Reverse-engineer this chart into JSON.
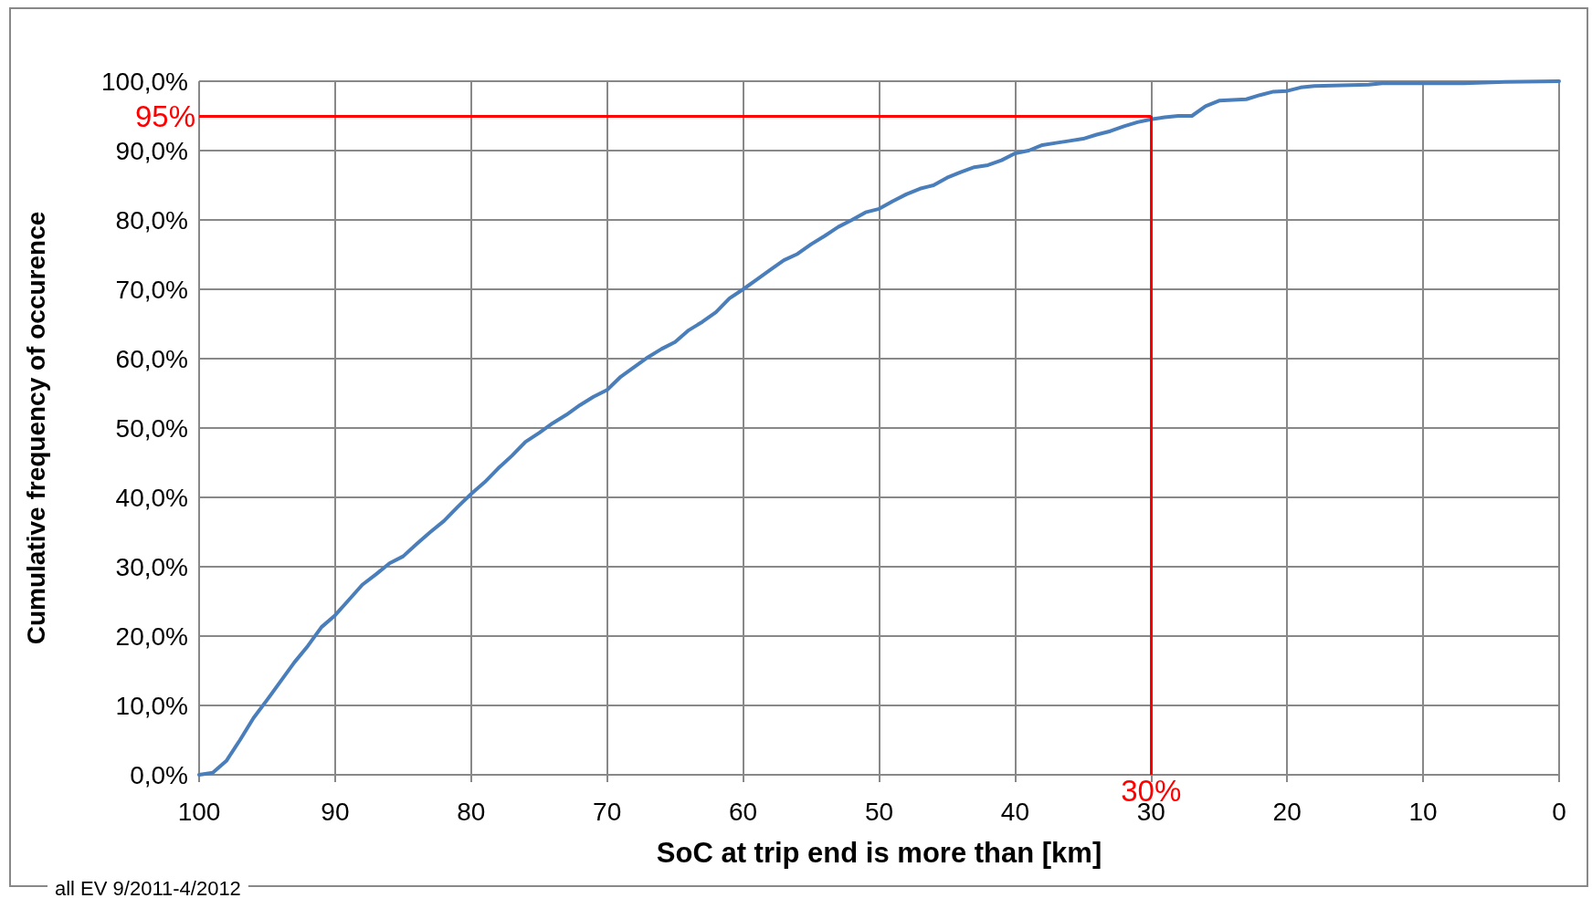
{
  "chart_data": {
    "type": "line",
    "xlabel": "SoC at trip end is more than [km]",
    "ylabel": "Cumulative frequency of occurence",
    "annotations": [
      "all EV 9/2011-4/2012"
    ],
    "xlim": [
      100,
      0
    ],
    "xticks": [
      100,
      90,
      80,
      70,
      60,
      50,
      40,
      30,
      20,
      10,
      0
    ],
    "ylim": [
      0,
      100
    ],
    "yticks": [
      {
        "value": 0,
        "label": "0,0%"
      },
      {
        "value": 10,
        "label": "10,0%"
      },
      {
        "value": 20,
        "label": "20,0%"
      },
      {
        "value": 30,
        "label": "30,0%"
      },
      {
        "value": 40,
        "label": "40,0%"
      },
      {
        "value": 50,
        "label": "50,0%"
      },
      {
        "value": 60,
        "label": "60,0%"
      },
      {
        "value": 70,
        "label": "70,0%"
      },
      {
        "value": 80,
        "label": "80,0%"
      },
      {
        "value": 90,
        "label": "90,0%"
      },
      {
        "value": 100,
        "label": "100,0%"
      }
    ],
    "grid": true,
    "marker": "none",
    "line_style": "solid",
    "ref_lines": [
      {
        "axis": "y",
        "value": 95,
        "label": "95%",
        "color": "#ff0000"
      },
      {
        "axis": "x",
        "value": 30,
        "label": "30%",
        "color": "#ff0000"
      }
    ],
    "series": [
      {
        "color": "#4a7ebb",
        "x": [
          100,
          99,
          98,
          97,
          96,
          95,
          94,
          93,
          92,
          91,
          90,
          89,
          88,
          87,
          86,
          85,
          84,
          83,
          82,
          81,
          80,
          79,
          78,
          77,
          76,
          75,
          74,
          73,
          72,
          71,
          70,
          69,
          68,
          67,
          66,
          65,
          64,
          63,
          62,
          61,
          60,
          59,
          58,
          57,
          56,
          55,
          54,
          53,
          52,
          51,
          50,
          49,
          48,
          47,
          46,
          45,
          44,
          43,
          42,
          41,
          40,
          39,
          38,
          37,
          36,
          35,
          34,
          33,
          32,
          31,
          30,
          29,
          28,
          27,
          26,
          25,
          24,
          23,
          22,
          21,
          20,
          19,
          18,
          16,
          14,
          13,
          7,
          4,
          0
        ],
        "values": [
          0,
          0.3,
          2,
          5,
          8.2,
          10.8,
          13.5,
          16.2,
          18.6,
          21.3,
          23,
          25.2,
          27.4,
          28.9,
          30.5,
          31.5,
          33.3,
          35,
          36.6,
          38.6,
          40.5,
          42.2,
          44.2,
          46,
          48,
          49.3,
          50.7,
          51.9,
          53.3,
          54.5,
          55.5,
          57.4,
          58.8,
          60.2,
          61.4,
          62.4,
          64.1,
          65.3,
          66.7,
          68.7,
          70,
          71.4,
          72.8,
          74.2,
          75.1,
          76.5,
          77.7,
          79,
          80,
          81.1,
          81.6,
          82.7,
          83.7,
          84.5,
          85,
          86.1,
          86.9,
          87.6,
          87.9,
          88.6,
          89.6,
          90,
          90.8,
          91.1,
          91.4,
          91.7,
          92.3,
          92.8,
          93.5,
          94.1,
          94.5,
          94.8,
          95,
          95,
          96.4,
          97.2,
          97.3,
          97.4,
          98,
          98.5,
          98.6,
          99.1,
          99.3,
          99.4,
          99.5,
          99.7,
          99.7,
          99.9,
          100
        ]
      }
    ]
  }
}
